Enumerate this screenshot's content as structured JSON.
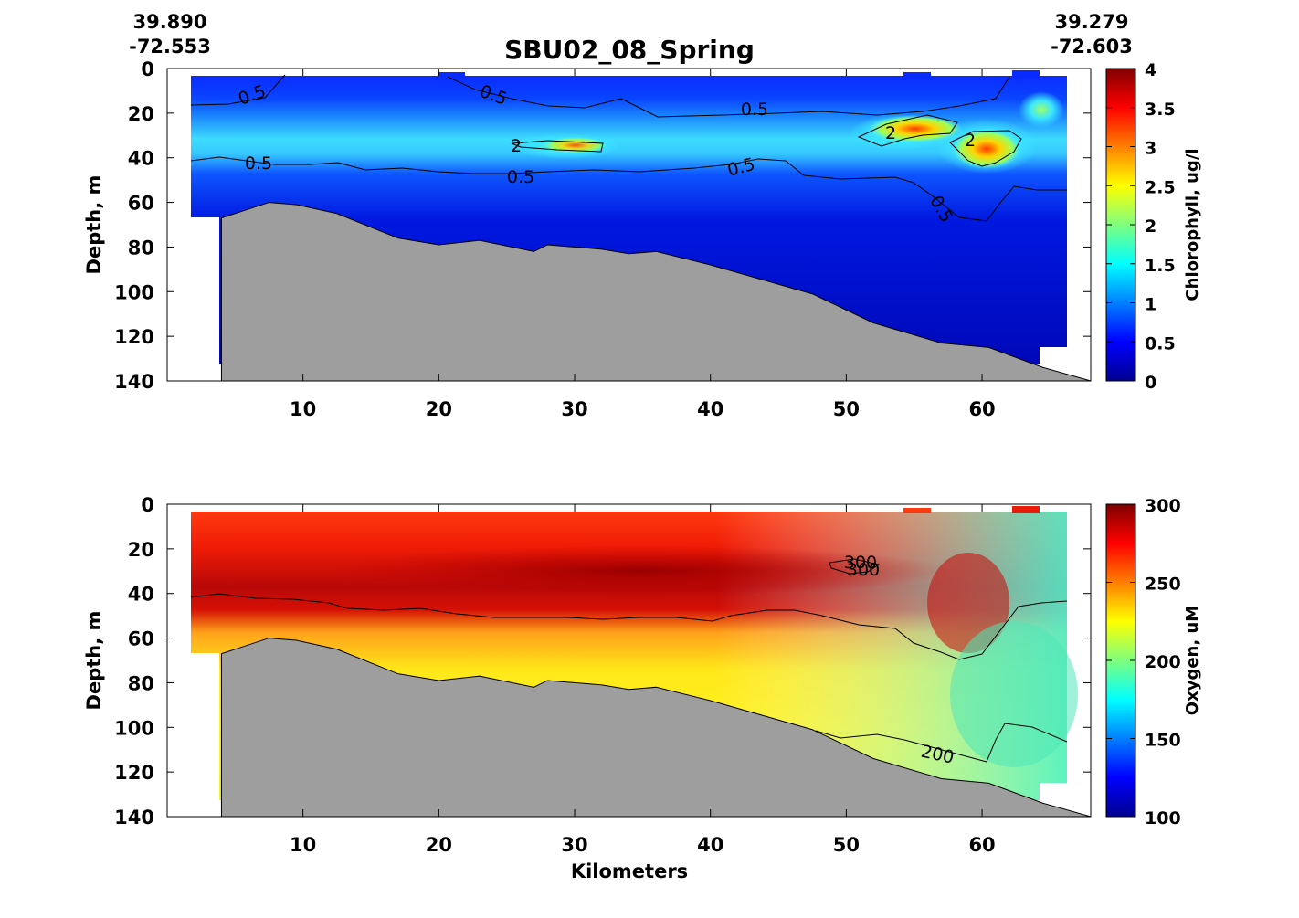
{
  "header": {
    "left_lat": "39.890",
    "left_lon": "-72.553",
    "title": "SBU02_08_Spring",
    "right_lat": "39.279",
    "right_lon": "-72.603"
  },
  "chart_data": [
    {
      "type": "heatmap",
      "title": "SBU02_08_Spring",
      "xlabel": "",
      "ylabel": "Depth, m",
      "xlim": [
        0,
        68
      ],
      "ylim": [
        140,
        0
      ],
      "x_ticks": [
        10,
        20,
        30,
        40,
        50,
        60
      ],
      "y_ticks": [
        0,
        20,
        40,
        60,
        80,
        100,
        120,
        140
      ],
      "colorbar": {
        "label": "Chlorophyll, ug/l",
        "range": [
          0,
          4
        ],
        "ticks": [
          "0",
          "0.5",
          "1",
          "1.5",
          "2",
          "2.5",
          "3",
          "3.5",
          "4"
        ],
        "colormap": "jet"
      },
      "contour_labels": [
        "0.5",
        "0.5",
        "0.5",
        "0.5",
        "0.5",
        "0.5",
        "0.5",
        "2",
        "2",
        "2"
      ],
      "bottom_color": "#9e9e9e",
      "bottom_depth": {
        "x": [
          4,
          7.5,
          9.5,
          12.5,
          17,
          20,
          23,
          27,
          28,
          32,
          34,
          36,
          40,
          47.5,
          52,
          57,
          60.5,
          64.5,
          68
        ],
        "y": [
          67,
          60,
          61,
          65,
          76,
          79,
          77,
          82,
          79,
          81,
          83,
          82,
          88,
          101,
          114,
          123,
          125,
          134,
          140
        ]
      }
    },
    {
      "type": "heatmap",
      "xlabel": "Kilometers",
      "ylabel": "Depth, m",
      "xlim": [
        0,
        68
      ],
      "ylim": [
        140,
        0
      ],
      "x_ticks": [
        10,
        20,
        30,
        40,
        50,
        60
      ],
      "y_ticks": [
        0,
        20,
        40,
        60,
        80,
        100,
        120,
        140
      ],
      "colorbar": {
        "label": "Oxygen, uM",
        "range": [
          100,
          300
        ],
        "ticks": [
          "100",
          "150",
          "200",
          "250",
          "300"
        ],
        "colormap": "jet"
      },
      "contour_labels": [
        "300",
        "300",
        "200"
      ],
      "bottom_color": "#9e9e9e",
      "bottom_depth": {
        "x": [
          4,
          7.5,
          9.5,
          12.5,
          17,
          20,
          23,
          27,
          28,
          32,
          34,
          36,
          40,
          47.5,
          52,
          57,
          60.5,
          64.5,
          68
        ],
        "y": [
          67,
          60,
          61,
          65,
          76,
          79,
          77,
          82,
          79,
          81,
          83,
          82,
          88,
          101,
          114,
          123,
          125,
          134,
          140
        ]
      }
    }
  ]
}
